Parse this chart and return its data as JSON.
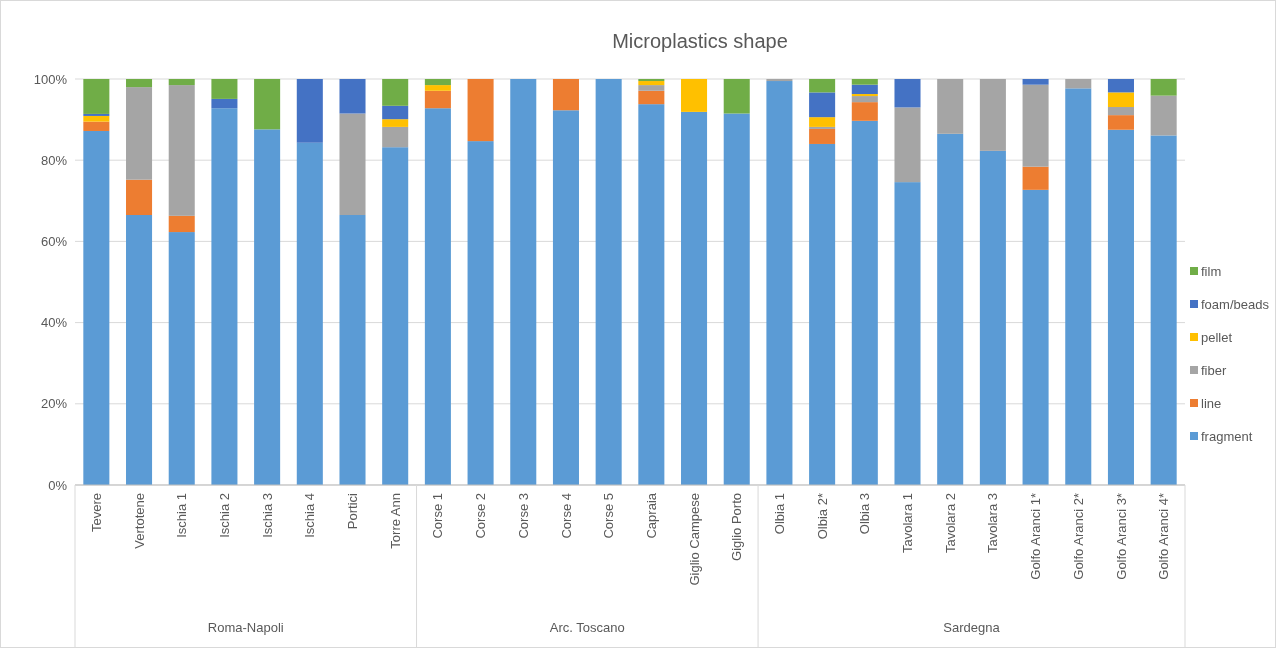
{
  "chart_data": {
    "type": "bar",
    "title": "Microplastics shape",
    "stacked": true,
    "categories": [
      "Tevere",
      "Vertotene",
      "Ischia 1",
      "Ischia 2",
      "Ischia 3",
      "Ischia 4",
      "Portici",
      "Torre Ann",
      "Corse 1",
      "Corse 2",
      "Corse 3",
      "Corse 4",
      "Corse 5",
      "Capraia",
      "Giglio Campese",
      "Giglio Porto",
      "Olbia 1",
      "Olbia 2*",
      "Olbia 3",
      "Tavolara 1",
      "Tavolara 2",
      "Tavolara 3",
      "Golfo Aranci 1*",
      "Golfo Aranci 2*",
      "Golfo Aranci 3*",
      "Golfo Aranci 4*"
    ],
    "series": [
      {
        "name": "fragment",
        "color": "#5b9bd5",
        "values": [
          87.2,
          66.5,
          62.3,
          92.8,
          87.6,
          84.3,
          66.5,
          83.2,
          92.8,
          84.7,
          100,
          92.3,
          100,
          93.8,
          91.9,
          91.5,
          99.5,
          84.0,
          89.7,
          74.6,
          86.5,
          82.3,
          72.7,
          97.7,
          87.5,
          86.1
        ]
      },
      {
        "name": "line",
        "color": "#ed7d31",
        "values": [
          2.3,
          8.7,
          4.0,
          0,
          0,
          0,
          0,
          0,
          4.3,
          15.3,
          0,
          7.7,
          0,
          3.3,
          0,
          0,
          0,
          3.7,
          4.6,
          0,
          0,
          0,
          5.7,
          0,
          3.6,
          0
        ]
      },
      {
        "name": "fiber",
        "color": "#a5a5a5",
        "values": [
          0,
          22.8,
          32.2,
          0,
          0,
          0,
          25.0,
          5.0,
          0,
          0,
          0,
          0,
          0,
          1.4,
          0,
          0,
          0.5,
          0.5,
          1.5,
          18.4,
          13.5,
          17.7,
          20.2,
          2.3,
          2.0,
          9.8
        ]
      },
      {
        "name": "pellet",
        "color": "#ffc000",
        "values": [
          1.4,
          0,
          0,
          0,
          0,
          0,
          0,
          1.9,
          1.4,
          0,
          0,
          0,
          0,
          1.0,
          8.1,
          0,
          0,
          2.4,
          0.5,
          0,
          0,
          0,
          0,
          0,
          3.6,
          0
        ]
      },
      {
        "name": "foam/beads",
        "color": "#4472c4",
        "values": [
          0.5,
          0,
          0,
          2.3,
          0,
          15.7,
          8.5,
          3.3,
          0,
          0,
          0,
          0,
          0,
          0,
          0,
          0,
          0,
          6.1,
          2.3,
          7.0,
          0,
          0,
          1.4,
          0,
          3.3,
          0
        ]
      },
      {
        "name": "film",
        "color": "#70ad47",
        "values": [
          8.6,
          2.0,
          1.5,
          4.9,
          12.4,
          0,
          0,
          6.6,
          1.5,
          0,
          0,
          0,
          0,
          0.5,
          0,
          8.5,
          0,
          3.3,
          1.4,
          0,
          0,
          0,
          0,
          0,
          0,
          4.1
        ]
      }
    ],
    "ylim": [
      0,
      100
    ],
    "yticks": [
      {
        "value": 0,
        "label": "0%"
      },
      {
        "value": 20,
        "label": "20%"
      },
      {
        "value": 40,
        "label": "40%"
      },
      {
        "value": 60,
        "label": "60%"
      },
      {
        "value": 80,
        "label": "80%"
      },
      {
        "value": 100,
        "label": "100%"
      }
    ],
    "grid": "y",
    "legend": "right",
    "annotations": [
      "Roma-Napoli",
      "Arc. Toscano",
      "Sardegna"
    ]
  }
}
